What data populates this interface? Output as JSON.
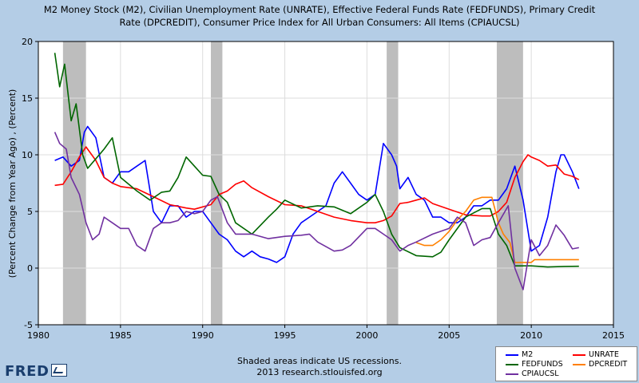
{
  "title_lines": [
    "M2 Money Stock (M2), Civilian Unemployment Rate (UNRATE), Effective Federal Funds Rate (FEDFUNDS), Primary Credit",
    "Rate (DPCREDIT), Consumer Price Index for All Urban Consumers: All Items (CPIAUCSL)"
  ],
  "footer_lines": [
    "Shaded areas indicate US recessions.",
    "2013 research.stlouisfed.org"
  ],
  "logo_text": "FRED",
  "chart_data": {
    "type": "line",
    "ylabel": "(Percent Change from Year Ago) , (Percent)",
    "xlim": [
      1980,
      2015
    ],
    "ylim": [
      -5,
      20
    ],
    "x_ticks": [
      1980,
      1985,
      1990,
      1995,
      2000,
      2005,
      2010,
      2015
    ],
    "y_ticks": [
      -5,
      0,
      5,
      10,
      15,
      20
    ],
    "grid": true,
    "legend_position": "bottom-right",
    "recessions": [
      [
        1981.5,
        1982.9
      ],
      [
        1990.5,
        1991.2
      ],
      [
        2001.2,
        2001.9
      ],
      [
        2007.9,
        2009.5
      ]
    ],
    "series": [
      {
        "name": "M2",
        "color": "#0000ff",
        "x": [
          1981.0,
          1981.5,
          1982.0,
          1982.5,
          1982.8,
          1983.0,
          1983.5,
          1984.0,
          1984.5,
          1985.0,
          1985.5,
          1986.0,
          1986.5,
          1987.0,
          1987.5,
          1988.0,
          1988.5,
          1989.0,
          1989.5,
          1990.0,
          1990.5,
          1991.0,
          1991.5,
          1992.0,
          1992.5,
          1993.0,
          1993.5,
          1994.0,
          1994.5,
          1995.0,
          1995.5,
          1996.0,
          1996.5,
          1997.0,
          1997.5,
          1998.0,
          1998.5,
          1999.0,
          1999.5,
          2000.0,
          2000.5,
          2001.0,
          2001.5,
          2001.8,
          2002.0,
          2002.5,
          2003.0,
          2003.5,
          2004.0,
          2004.5,
          2005.0,
          2005.5,
          2006.0,
          2006.5,
          2007.0,
          2007.5,
          2008.0,
          2008.5,
          2009.0,
          2009.5,
          2010.0,
          2010.5,
          2011.0,
          2011.5,
          2011.8,
          2012.0,
          2012.5,
          2012.9
        ],
        "y": [
          9.5,
          9.8,
          9.0,
          9.5,
          12.0,
          12.5,
          11.5,
          8.0,
          7.5,
          8.5,
          8.5,
          9.0,
          9.5,
          5.0,
          4.0,
          5.5,
          5.5,
          4.5,
          5.0,
          5.0,
          4.0,
          3.0,
          2.5,
          1.5,
          1.0,
          1.5,
          1.0,
          0.8,
          0.5,
          1.0,
          3.0,
          4.0,
          4.5,
          5.0,
          5.5,
          7.5,
          8.5,
          7.5,
          6.5,
          6.0,
          6.5,
          11.0,
          10.0,
          9.0,
          7.0,
          8.0,
          6.5,
          6.0,
          4.5,
          4.5,
          4.0,
          4.0,
          4.5,
          5.5,
          5.5,
          6.0,
          6.0,
          7.0,
          9.0,
          6.0,
          1.5,
          2.0,
          4.5,
          8.5,
          10.0,
          10.0,
          8.5,
          7.0
        ]
      },
      {
        "name": "UNRATE",
        "color": "#ff0000",
        "x": [
          1981.0,
          1981.5,
          1982.0,
          1982.5,
          1982.9,
          1983.5,
          1984.0,
          1984.5,
          1985.0,
          1986.0,
          1987.0,
          1988.0,
          1989.0,
          1989.5,
          1990.0,
          1990.5,
          1991.0,
          1991.5,
          1992.0,
          1992.5,
          1993.0,
          1994.0,
          1995.0,
          1996.0,
          1997.0,
          1998.0,
          1999.0,
          2000.0,
          2000.5,
          2001.0,
          2001.5,
          2002.0,
          2002.5,
          2003.0,
          2003.5,
          2004.0,
          2005.0,
          2006.0,
          2007.0,
          2007.5,
          2008.0,
          2008.5,
          2009.0,
          2009.5,
          2009.8,
          2010.0,
          2010.5,
          2011.0,
          2011.5,
          2012.0,
          2012.5,
          2012.9
        ],
        "y": [
          7.3,
          7.4,
          8.5,
          9.8,
          10.7,
          9.5,
          8.0,
          7.5,
          7.2,
          7.0,
          6.3,
          5.6,
          5.3,
          5.2,
          5.4,
          5.6,
          6.5,
          6.8,
          7.4,
          7.7,
          7.1,
          6.3,
          5.6,
          5.5,
          5.0,
          4.5,
          4.2,
          4.0,
          4.0,
          4.2,
          4.6,
          5.7,
          5.8,
          6.0,
          6.2,
          5.7,
          5.2,
          4.7,
          4.6,
          4.6,
          5.0,
          5.8,
          8.0,
          9.4,
          10.0,
          9.8,
          9.5,
          9.0,
          9.1,
          8.3,
          8.1,
          7.8
        ]
      },
      {
        "name": "FEDFUNDS",
        "color": "#006600",
        "x": [
          1981.0,
          1981.3,
          1981.6,
          1982.0,
          1982.3,
          1982.7,
          1983.0,
          1984.0,
          1984.5,
          1985.0,
          1986.0,
          1986.8,
          1987.5,
          1988.0,
          1988.5,
          1989.0,
          1989.5,
          1990.0,
          1990.5,
          1991.0,
          1991.5,
          1992.0,
          1993.0,
          1994.0,
          1994.5,
          1995.0,
          1996.0,
          1997.0,
          1998.0,
          1999.0,
          2000.0,
          2000.5,
          2001.0,
          2001.5,
          2002.0,
          2003.0,
          2004.0,
          2004.5,
          2005.0,
          2006.0,
          2007.0,
          2007.5,
          2008.0,
          2008.5,
          2009.0,
          2010.0,
          2011.0,
          2012.0,
          2012.9
        ],
        "y": [
          19.0,
          16.0,
          18.0,
          13.0,
          14.5,
          10.0,
          8.8,
          10.5,
          11.5,
          8.0,
          6.8,
          6.0,
          6.7,
          6.8,
          8.0,
          9.8,
          9.0,
          8.2,
          8.1,
          6.5,
          5.8,
          4.0,
          3.0,
          4.5,
          5.2,
          6.0,
          5.3,
          5.5,
          5.4,
          4.8,
          5.8,
          6.5,
          5.0,
          3.0,
          1.8,
          1.1,
          1.0,
          1.4,
          2.5,
          4.5,
          5.25,
          5.25,
          3.0,
          2.0,
          0.2,
          0.2,
          0.1,
          0.15,
          0.16
        ]
      },
      {
        "name": "DPCREDIT",
        "color": "#ff8000",
        "x": [
          2003.0,
          2003.5,
          2004.0,
          2004.5,
          2005.0,
          2005.5,
          2006.0,
          2006.5,
          2007.0,
          2007.6,
          2008.0,
          2008.3,
          2008.7,
          2009.0,
          2010.0,
          2010.2,
          2011.0,
          2012.0,
          2012.9
        ],
        "y": [
          2.25,
          2.0,
          2.0,
          2.5,
          3.25,
          4.25,
          5.0,
          6.0,
          6.25,
          6.25,
          4.0,
          3.0,
          2.25,
          0.5,
          0.5,
          0.75,
          0.75,
          0.75,
          0.75
        ]
      },
      {
        "name": "CPIAUCSL",
        "color": "#7030a0",
        "x": [
          1981.0,
          1981.3,
          1981.7,
          1982.0,
          1982.5,
          1982.9,
          1983.3,
          1983.7,
          1984.0,
          1984.5,
          1985.0,
          1985.5,
          1986.0,
          1986.5,
          1987.0,
          1987.5,
          1988.0,
          1988.5,
          1989.0,
          1989.5,
          1990.0,
          1990.5,
          1990.9,
          1991.5,
          1992.0,
          1993.0,
          1994.0,
          1995.0,
          1996.0,
          1996.5,
          1997.0,
          1998.0,
          1998.5,
          1999.0,
          2000.0,
          2000.5,
          2001.0,
          2001.5,
          2002.0,
          2002.5,
          2003.0,
          2004.0,
          2005.0,
          2005.5,
          2006.0,
          2006.5,
          2007.0,
          2007.5,
          2008.0,
          2008.6,
          2009.0,
          2009.5,
          2010.0,
          2010.5,
          2011.0,
          2011.5,
          2012.0,
          2012.5,
          2012.9
        ],
        "y": [
          12.0,
          11.0,
          10.5,
          8.0,
          6.5,
          4.0,
          2.5,
          3.0,
          4.5,
          4.0,
          3.5,
          3.5,
          2.0,
          1.5,
          3.5,
          4.0,
          4.0,
          4.2,
          5.0,
          4.8,
          5.0,
          6.0,
          6.3,
          4.0,
          3.0,
          3.0,
          2.6,
          2.8,
          2.9,
          3.0,
          2.3,
          1.5,
          1.6,
          2.0,
          3.5,
          3.5,
          3.0,
          2.5,
          1.5,
          2.0,
          2.3,
          3.0,
          3.5,
          4.5,
          4.0,
          2.0,
          2.5,
          2.7,
          4.0,
          5.5,
          0.0,
          -1.9,
          2.5,
          1.1,
          2.0,
          3.8,
          2.9,
          1.7,
          1.8
        ]
      }
    ]
  }
}
